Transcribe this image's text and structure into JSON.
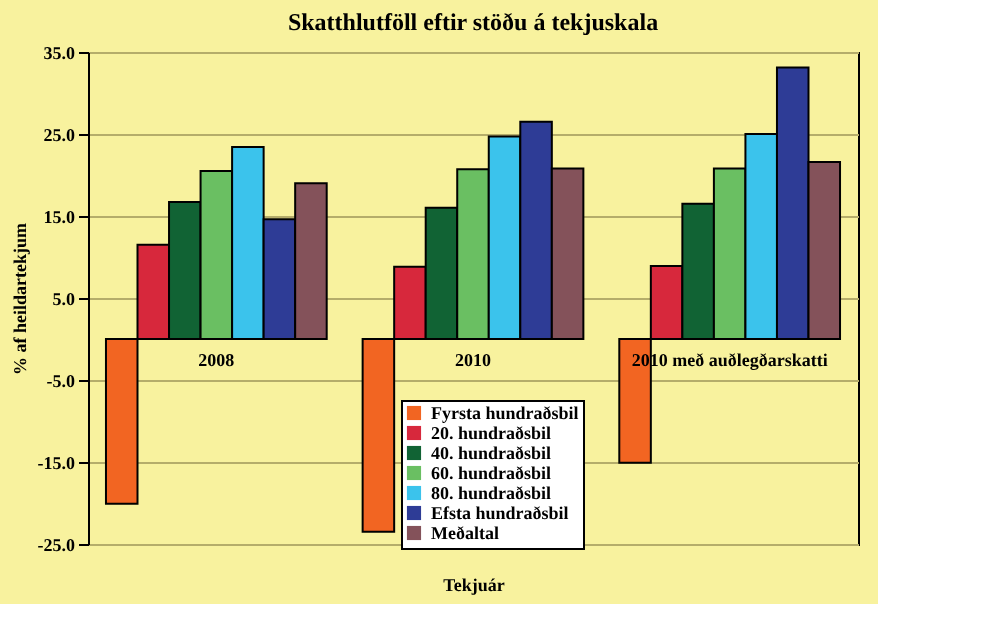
{
  "chart_data": {
    "type": "bar",
    "title": "Skatthlutföll eftir stöðu á tekjuskala",
    "xlabel": "Tekjuár",
    "ylabel": "% af heildartekjum",
    "categories": [
      "2008",
      "2010",
      "2010 með auðlegðarskatti"
    ],
    "series": [
      {
        "name": "Fyrsta hundraðsbil",
        "color": "#f26522",
        "values": [
          -20.1,
          -23.5,
          -15.1
        ]
      },
      {
        "name": "20. hundraðsbil",
        "color": "#d7283c",
        "values": [
          11.5,
          8.8,
          8.9
        ]
      },
      {
        "name": "40. hundraðsbil",
        "color": "#116334",
        "values": [
          16.7,
          16.0,
          16.5
        ]
      },
      {
        "name": "60. hundraðsbil",
        "color": "#6abf62",
        "values": [
          20.5,
          20.7,
          20.8
        ]
      },
      {
        "name": "80. hundraðsbil",
        "color": "#3bc3ec",
        "values": [
          23.4,
          24.7,
          25.0
        ]
      },
      {
        "name": "Efsta hundraðsbil",
        "color": "#2e3c96",
        "values": [
          14.6,
          26.5,
          33.1
        ]
      },
      {
        "name": "Meðaltal",
        "color": "#84525a",
        "values": [
          19.0,
          20.8,
          21.6
        ]
      }
    ],
    "ylim": [
      -25,
      35
    ],
    "yticks": [
      {
        "value": 35,
        "label": "35.0"
      },
      {
        "value": 25,
        "label": "25.0"
      },
      {
        "value": 15,
        "label": "15.0"
      },
      {
        "value": 5,
        "label": "5.0"
      },
      {
        "value": -5,
        "label": "-5.0"
      },
      {
        "value": -15,
        "label": "-15.0"
      },
      {
        "value": -25,
        "label": "-25.0"
      }
    ],
    "grid": "y",
    "legend": "bottom"
  }
}
